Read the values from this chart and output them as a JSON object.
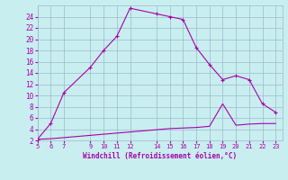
{
  "xlabel": "Windchill (Refroidissement éolien,°C)",
  "background_color": "#c8eef0",
  "grid_color": "#a0b8cc",
  "line_color": "#aa00aa",
  "xlim": [
    5,
    23.5
  ],
  "ylim": [
    2,
    26
  ],
  "xticks": [
    5,
    6,
    7,
    9,
    10,
    11,
    12,
    14,
    15,
    16,
    17,
    18,
    19,
    20,
    21,
    22,
    23
  ],
  "yticks": [
    2,
    4,
    6,
    8,
    10,
    12,
    14,
    16,
    18,
    20,
    22,
    24
  ],
  "line1_x": [
    5,
    6,
    7,
    9,
    10,
    11,
    12,
    14,
    15,
    16,
    17,
    18,
    19,
    20,
    21,
    22,
    23
  ],
  "line1_y": [
    2.2,
    5.0,
    10.5,
    15.0,
    18.0,
    20.5,
    25.5,
    24.5,
    24.0,
    23.5,
    18.5,
    15.5,
    12.8,
    13.5,
    12.8,
    8.5,
    7.0
  ],
  "line2_x": [
    5,
    6,
    7,
    8,
    9,
    10,
    11,
    12,
    13,
    14,
    15,
    16,
    17,
    18,
    19,
    20,
    21,
    22,
    23
  ],
  "line2_y": [
    2.2,
    2.3,
    2.5,
    2.7,
    2.9,
    3.1,
    3.3,
    3.5,
    3.7,
    3.9,
    4.1,
    4.2,
    4.3,
    4.5,
    8.5,
    4.7,
    4.9,
    5.0,
    5.0
  ],
  "xlabel_fontsize": 5.5,
  "tick_fontsize_x": 5,
  "tick_fontsize_y": 5.5
}
